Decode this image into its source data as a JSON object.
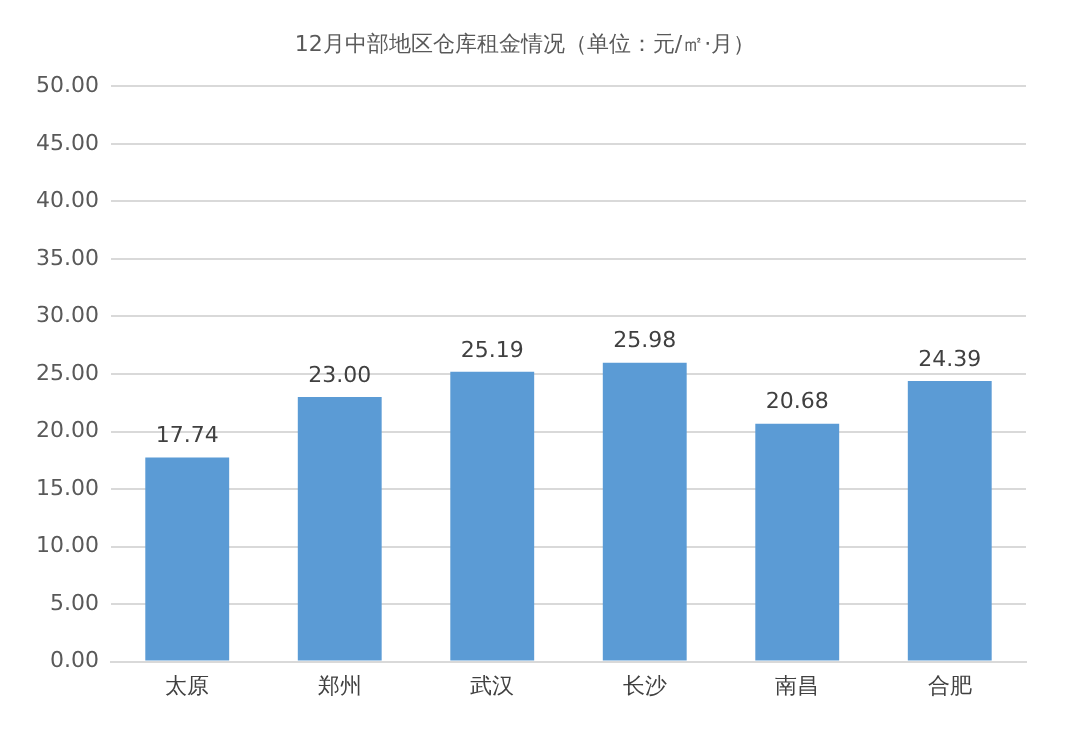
{
  "chart_data": {
    "type": "bar",
    "title": "12月中部地区仓库租金情况（单位：元/㎡·月）",
    "categories": [
      "太原",
      "郑州",
      "武汉",
      "长沙",
      "南昌",
      "合肥"
    ],
    "values": [
      17.74,
      23.0,
      25.19,
      25.98,
      20.68,
      24.39
    ],
    "value_labels": [
      "17.74",
      "23.00",
      "25.19",
      "25.98",
      "20.68",
      "24.39"
    ],
    "color": "#5b9bd5",
    "ylim": [
      0,
      50
    ],
    "yticks": [
      {
        "value": 0,
        "label": "0.00"
      },
      {
        "value": 5,
        "label": "5.00"
      },
      {
        "value": 10,
        "label": "10.00"
      },
      {
        "value": 15,
        "label": "15.00"
      },
      {
        "value": 20,
        "label": "20.00"
      },
      {
        "value": 25,
        "label": "25.00"
      },
      {
        "value": 30,
        "label": "30.00"
      },
      {
        "value": 35,
        "label": "35.00"
      },
      {
        "value": 40,
        "label": "40.00"
      },
      {
        "value": 45,
        "label": "45.00"
      },
      {
        "value": 50,
        "label": "50.00"
      }
    ],
    "grid": "y"
  }
}
